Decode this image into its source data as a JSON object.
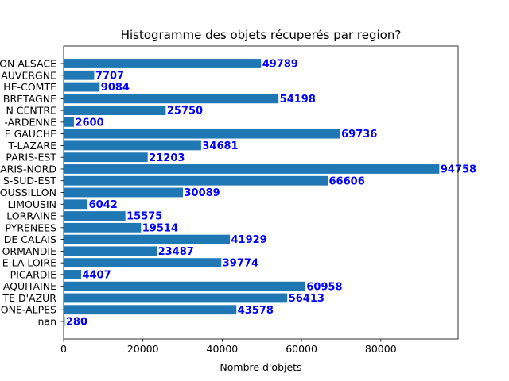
{
  "chart_data": {
    "type": "bar",
    "orientation": "horizontal",
    "title": "Histogramme des objets récuperés par region?",
    "xlabel": "Nombre d'objets",
    "ylabel": "",
    "xlim": [
      0,
      99500
    ],
    "xticks": [
      0,
      20000,
      40000,
      60000,
      80000
    ],
    "categories": [
      "ON ALSACE",
      "AUVERGNE",
      "HE-COMTE",
      "BRETAGNE",
      "N CENTRE",
      "-ARDENNE",
      "E GAUCHE",
      "T-LAZARE",
      "PARIS-EST",
      "ARIS-NORD",
      "S-SUD-EST",
      "OUSSILLON",
      "LIMOUSIN",
      "LORRAINE",
      "PYRENEES",
      "DE CALAIS",
      "ORMANDIE",
      "E LA LOIRE",
      "PICARDIE",
      "AQUITAINE",
      "TE D'AZUR",
      "ONE-ALPES",
      "nan"
    ],
    "values": [
      49789,
      7707,
      9084,
      54198,
      25750,
      2600,
      69736,
      34681,
      21203,
      94758,
      66606,
      30089,
      6042,
      15575,
      19514,
      41929,
      23487,
      39774,
      4407,
      60958,
      56413,
      43578,
      280
    ],
    "data_labels": [
      "49789",
      "7707",
      "9084",
      "54198",
      "25750",
      "2600",
      "69736",
      "34681",
      "21203",
      "94758",
      "66606",
      "30089",
      "6042",
      "15575",
      "19514",
      "41929",
      "23487",
      "39774",
      "4407",
      "60958",
      "56413",
      "43578",
      "280"
    ],
    "grid": false,
    "legend": "none",
    "colors": {
      "bar": "#1f77b4",
      "value_label": "#0000ff",
      "axis": "#000000"
    }
  }
}
